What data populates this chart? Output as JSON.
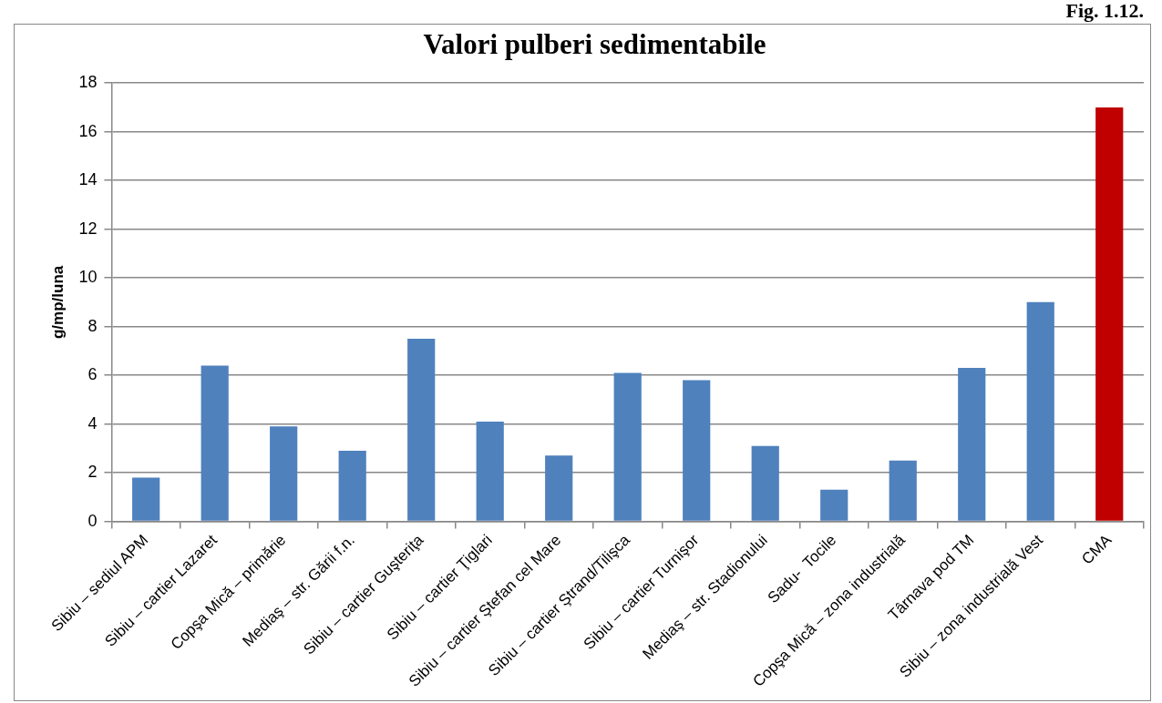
{
  "chart_data": {
    "type": "bar",
    "title": "Valori pulberi sedimentabile",
    "ylabel": "g/mp/luna",
    "categories": [
      "Sibiu – sediul APM",
      "Sibiu – cartier Lazaret",
      "Copşa Mică – primărie",
      "Mediaş – str. Gării f.n.",
      "Sibiu – cartier Guşteriţa",
      "Sibiu – cartier Ţiglari",
      "Sibiu – cartier Ştefan cel Mare",
      "Sibiu – cartier Ştrand/Tilişca",
      "Sibiu – cartier Turnişor",
      "Mediaş – str. Stadionului",
      "Sadu-  Tocile",
      "Copşa Mică – zona industrială",
      "Târnava pod TM",
      "Sibiu – zona industrială Vest",
      "CMA"
    ],
    "values": [
      1.8,
      6.4,
      3.9,
      2.9,
      7.5,
      4.1,
      2.7,
      6.1,
      5.8,
      3.1,
      1.3,
      2.5,
      6.3,
      9.0,
      17
    ],
    "colors": [
      "#4f81bd",
      "#4f81bd",
      "#4f81bd",
      "#4f81bd",
      "#4f81bd",
      "#4f81bd",
      "#4f81bd",
      "#4f81bd",
      "#4f81bd",
      "#4f81bd",
      "#4f81bd",
      "#4f81bd",
      "#4f81bd",
      "#4f81bd",
      "#c00000"
    ],
    "ylim": [
      0,
      18
    ],
    "yticks": [
      0,
      2,
      4,
      6,
      8,
      10,
      12,
      14,
      16,
      18
    ],
    "grid": "y",
    "legend": false,
    "annotations": [
      "Fig. 1.12."
    ]
  }
}
